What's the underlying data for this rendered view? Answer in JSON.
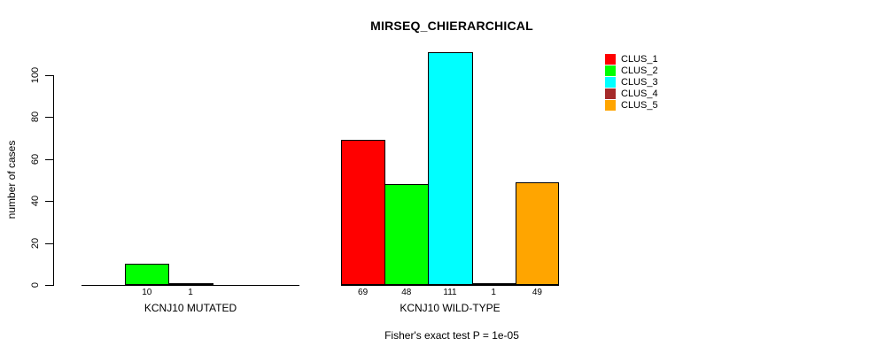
{
  "background": "#FFFFFF",
  "chart_data": {
    "type": "bar",
    "title": "MIRSEQ_CHIERARCHICAL",
    "ylabel": "number of cases",
    "xlabel": "",
    "annotation": "Fisher's exact test P = 1e-05",
    "categories": [
      "KCNJ10 MUTATED",
      "KCNJ10 WILD-TYPE"
    ],
    "series": [
      {
        "name": "CLUS_1",
        "color": "#FF0000",
        "values": [
          0,
          69
        ]
      },
      {
        "name": "CLUS_2",
        "color": "#00FF00",
        "values": [
          10,
          48
        ]
      },
      {
        "name": "CLUS_3",
        "color": "#00FFFF",
        "values": [
          1,
          111
        ]
      },
      {
        "name": "CLUS_4",
        "color": "#A52A2A",
        "values": [
          0,
          1
        ]
      },
      {
        "name": "CLUS_5",
        "color": "#FFA500",
        "values": [
          0,
          49
        ]
      }
    ],
    "bar_labels": [
      [
        "",
        "10",
        "1",
        "",
        ""
      ],
      [
        "69",
        "48",
        "111",
        "1",
        "49"
      ]
    ],
    "yticks": [
      0,
      20,
      40,
      60,
      80,
      100
    ],
    "ylim": [
      0,
      115
    ],
    "grid": false,
    "legend_position": "top-right"
  }
}
